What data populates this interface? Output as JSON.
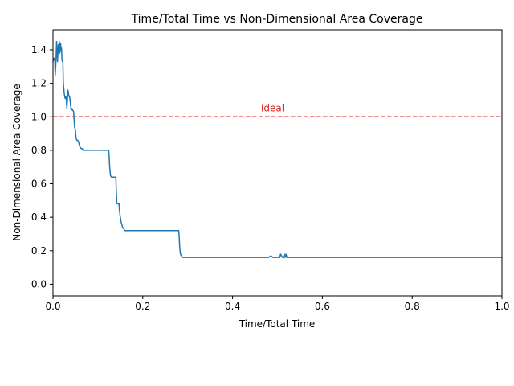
{
  "chart_data": {
    "type": "line",
    "title": "Time/Total Time vs Non-Dimensional Area Coverage",
    "xlabel": "Time/Total Time",
    "ylabel": "Non-Dimensional Area Coverage",
    "xlim": [
      0,
      1
    ],
    "ylim": [
      -0.07,
      1.52
    ],
    "xticks": [
      "0.0",
      "0.2",
      "0.4",
      "0.6",
      "0.8",
      "1.0"
    ],
    "yticks": [
      "0.0",
      "0.2",
      "0.4",
      "0.6",
      "0.8",
      "1.0",
      "1.2",
      "1.4"
    ],
    "grid": false,
    "colors": {
      "series": "#1f77b4",
      "reference": "#d62728"
    },
    "reference_line": {
      "y": 1.0,
      "label": "Ideal",
      "label_x": 0.5,
      "style": "dashed"
    },
    "series": [
      {
        "x": [
          0,
          0.002,
          0.004,
          0.005,
          0.006,
          0.007,
          0.008,
          0.009,
          0.01,
          0.011,
          0.012,
          0.013,
          0.014,
          0.015,
          0.016,
          0.017,
          0.018,
          0.019,
          0.02,
          0.021,
          0.022,
          0.023,
          0.025,
          0.027,
          0.029,
          0.031,
          0.032,
          0.033,
          0.034,
          0.035,
          0.036,
          0.037,
          0.038,
          0.04,
          0.041,
          0.042,
          0.044,
          0.046,
          0.048,
          0.05,
          0.051,
          0.053,
          0.055,
          0.057,
          0.06,
          0.063,
          0.065,
          0.067,
          0.07,
          0.073,
          0.075,
          0.08,
          0.1,
          0.124,
          0.125,
          0.126,
          0.127,
          0.128,
          0.13,
          0.135,
          0.14,
          0.141,
          0.142,
          0.143,
          0.144,
          0.147,
          0.148,
          0.15,
          0.152,
          0.155,
          0.158,
          0.16,
          0.2,
          0.28,
          0.281,
          0.282,
          0.283,
          0.284,
          0.286,
          0.288,
          0.29,
          0.293,
          0.295,
          0.3,
          0.4,
          0.48,
          0.485,
          0.49,
          0.505,
          0.507,
          0.509,
          0.511,
          0.513,
          0.515,
          0.517,
          0.519,
          0.521,
          0.523,
          0.6,
          0.8,
          1.0
        ],
        "values": [
          1.33,
          1.35,
          1.34,
          1.25,
          1.3,
          1.36,
          1.45,
          1.42,
          1.33,
          1.38,
          1.43,
          1.4,
          1.45,
          1.38,
          1.42,
          1.44,
          1.39,
          1.41,
          1.34,
          1.33,
          1.33,
          1.2,
          1.14,
          1.11,
          1.12,
          1.05,
          1.1,
          1.16,
          1.15,
          1.13,
          1.12,
          1.12,
          1.1,
          1.05,
          1.04,
          1.05,
          1.04,
          1.03,
          0.94,
          0.92,
          0.88,
          0.86,
          0.86,
          0.85,
          0.82,
          0.81,
          0.81,
          0.8,
          0.8,
          0.8,
          0.8,
          0.8,
          0.8,
          0.8,
          0.77,
          0.71,
          0.68,
          0.65,
          0.64,
          0.64,
          0.64,
          0.56,
          0.49,
          0.48,
          0.48,
          0.48,
          0.44,
          0.4,
          0.37,
          0.34,
          0.33,
          0.32,
          0.32,
          0.32,
          0.29,
          0.23,
          0.2,
          0.18,
          0.17,
          0.16,
          0.16,
          0.16,
          0.16,
          0.16,
          0.16,
          0.16,
          0.17,
          0.16,
          0.16,
          0.18,
          0.17,
          0.16,
          0.16,
          0.18,
          0.16,
          0.18,
          0.16,
          0.16,
          0.16,
          0.16,
          0.16
        ]
      }
    ]
  }
}
